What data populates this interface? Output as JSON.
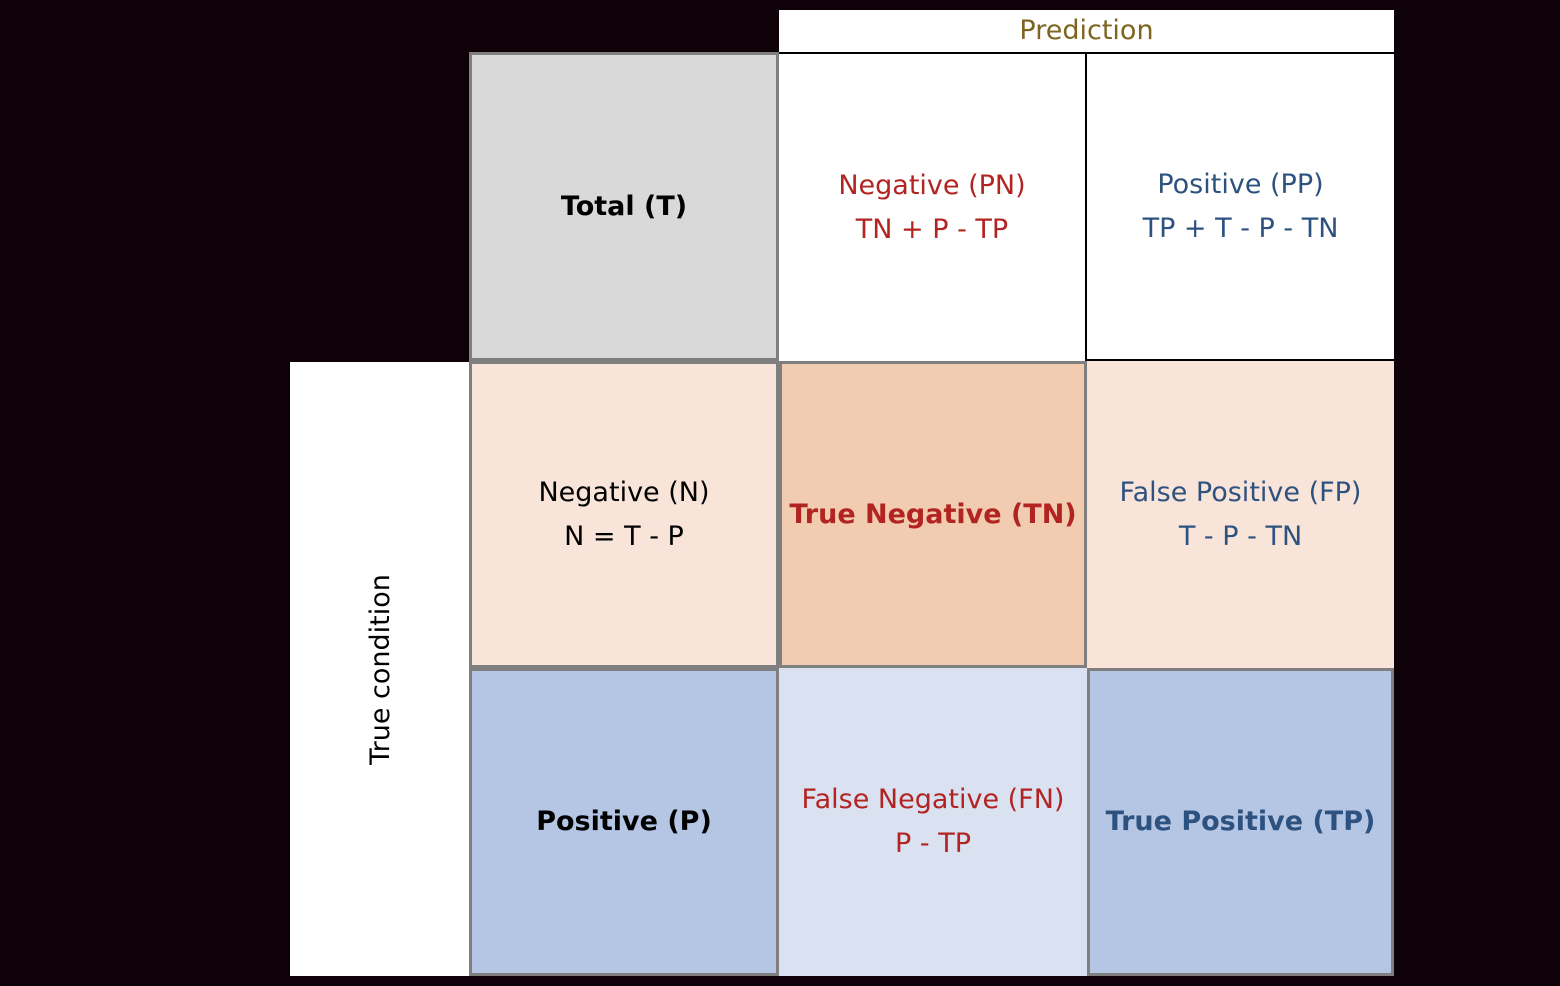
{
  "prediction_header": "Prediction",
  "true_condition_header": "True condition",
  "cells": {
    "total": {
      "label": "Total (T)"
    },
    "predicted_negative": {
      "label": "Negative (PN)",
      "formula": "TN + P - TP"
    },
    "predicted_positive": {
      "label": "Positive (PP)",
      "formula": "TP + T - P - TN"
    },
    "actual_negative": {
      "label": "Negative (N)",
      "formula": "N = T - P"
    },
    "true_negative": {
      "label": "True Negative (TN)"
    },
    "false_positive": {
      "label": "False Positive (FP)",
      "formula": "T - P - TN"
    },
    "actual_positive": {
      "label": "Positive (P)"
    },
    "false_negative": {
      "label": "False Negative (FN)",
      "formula": "P - TP"
    },
    "true_positive": {
      "label": "True Positive (TP)"
    }
  },
  "colors": {
    "background": "#0e0208",
    "total_fill": "#d9d9d9",
    "negative_light_fill": "#f8e4d8",
    "negative_dark_fill": "#f1ccb0",
    "positive_fill": "#b5c6e5",
    "positive_light_fill": "#dae1f1",
    "negative_text": "#b22421",
    "positive_text": "#2e5280",
    "prediction_text": "#7d6520",
    "border": "#7f7f7f"
  }
}
